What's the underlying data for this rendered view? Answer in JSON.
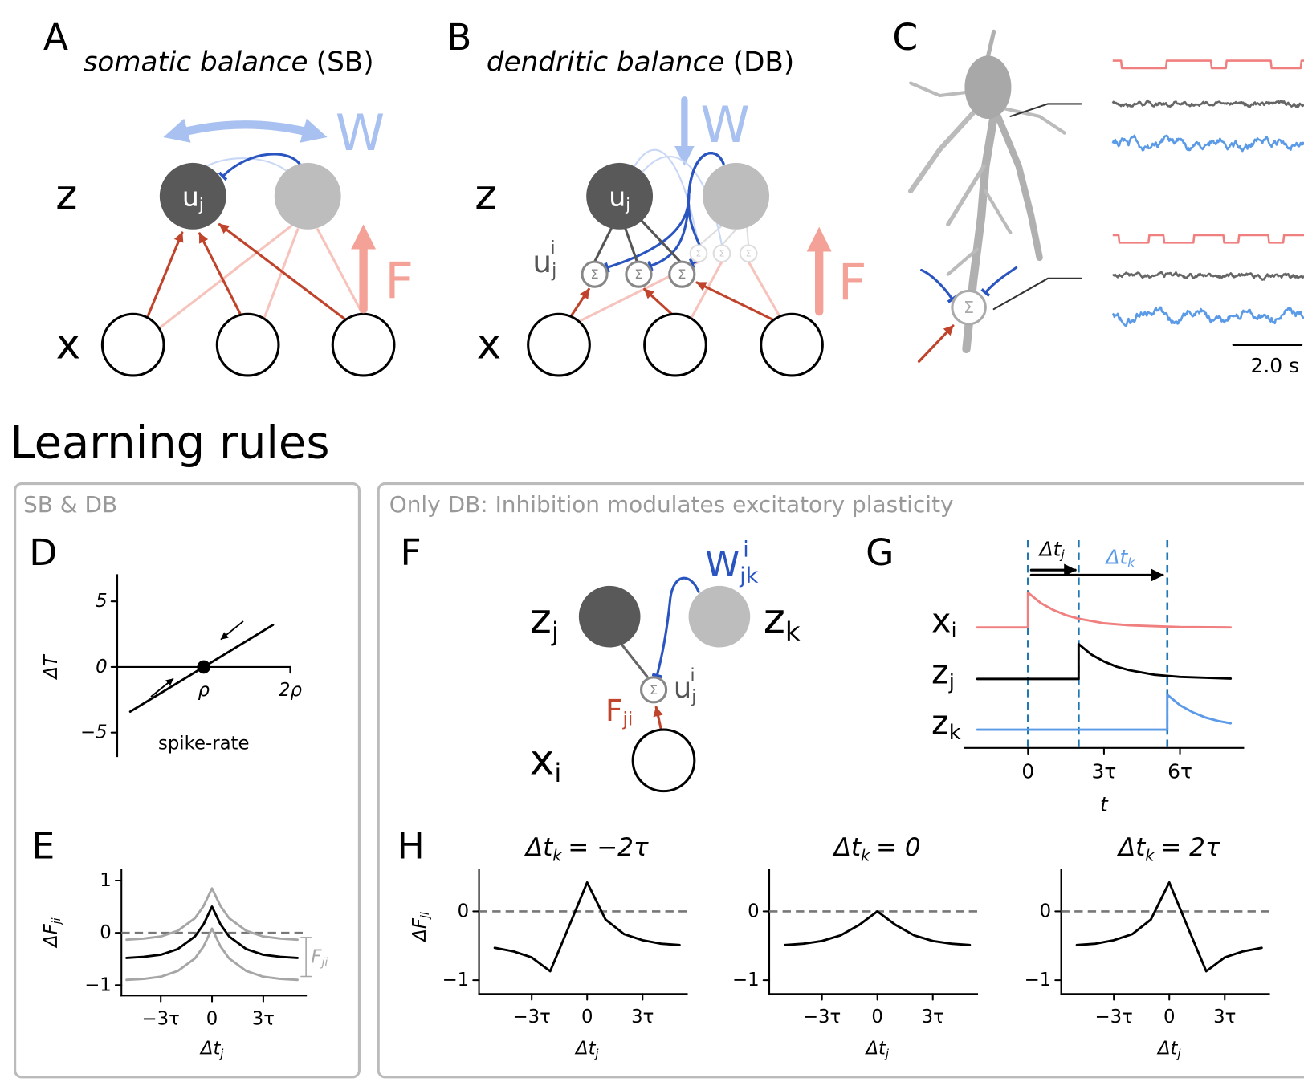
{
  "panel_a": {
    "letter": "A",
    "title": {
      "italic": "somatic balance",
      "plain": "(SB)"
    },
    "layer_z": "z",
    "layer_x": "x",
    "neuron": {
      "main": "u",
      "sub": "j"
    },
    "w_label": "W",
    "f_label": "F"
  },
  "panel_b": {
    "letter": "B",
    "title": {
      "italic": "dendritic balance",
      "plain": "(DB)"
    },
    "layer_z": "z",
    "layer_x": "x",
    "neuron": {
      "main": "u",
      "sub": "j"
    },
    "dendrite": {
      "main": "u",
      "sub": "j",
      "sup": "i"
    },
    "sum_symbol": "Σ",
    "w_label": "W",
    "f_label": "F"
  },
  "panel_c": {
    "letter": "C",
    "sum_symbol": "Σ",
    "scale_bar": "2.0 s"
  },
  "section_title": "Learning rules",
  "box_left": {
    "title": "SB & DB"
  },
  "box_right": {
    "title": "Only DB: Inhibition modulates excitatory plasticity"
  },
  "panel_d": {
    "letter": "D",
    "type": "line",
    "ylabel": "ΔT",
    "xlabel": "spike-rate",
    "xlim": [
      0,
      2
    ],
    "ylim": [
      -6.8,
      7
    ],
    "xticks": [
      {
        "value": 1,
        "label": "ρ"
      },
      {
        "value": 2,
        "label": "2ρ"
      }
    ],
    "yticks": [
      5,
      0,
      {
        "value": -5,
        "label": "−5"
      }
    ],
    "x": [
      0.15,
      1.8
    ],
    "values": [
      -3.4,
      3.2
    ],
    "color": "#000000",
    "point": {
      "x": 1,
      "value": 0
    }
  },
  "panel_e": {
    "letter": "E",
    "type": "line",
    "ylabel": {
      "main": "ΔF",
      "sub": "ji"
    },
    "xlabel": {
      "main": "Δt",
      "sub": "j"
    },
    "annotation": {
      "main": "F",
      "sub": "ji"
    },
    "xlim": [
      -5.3,
      5.5
    ],
    "ylim": [
      -1.2,
      1.2
    ],
    "xticks": [
      {
        "value": -3,
        "label": "−3τ"
      },
      0,
      {
        "value": 3,
        "label": "3τ"
      }
    ],
    "yticks": [
      1,
      0,
      {
        "value": -1,
        "label": "−1"
      }
    ],
    "hline": 0,
    "x": [
      -5,
      -4,
      -3,
      -2,
      -1,
      -0.5,
      0,
      0.5,
      1,
      2,
      3,
      4,
      5
    ],
    "series": [
      {
        "color": "#a6a6a6",
        "values": [
          -0.13,
          -0.11,
          -0.07,
          0.04,
          0.28,
          0.51,
          0.85,
          0.51,
          0.28,
          0.04,
          -0.07,
          -0.11,
          -0.13
        ]
      },
      {
        "color": "#000000",
        "values": [
          -0.48,
          -0.46,
          -0.42,
          -0.31,
          -0.07,
          0.16,
          0.5,
          0.16,
          -0.07,
          -0.31,
          -0.42,
          -0.46,
          -0.48
        ]
      },
      {
        "color": "#a6a6a6",
        "values": [
          -0.9,
          -0.88,
          -0.84,
          -0.73,
          -0.49,
          -0.26,
          0.08,
          -0.26,
          -0.49,
          -0.73,
          -0.84,
          -0.88,
          -0.9
        ]
      }
    ]
  },
  "panel_f": {
    "letter": "F",
    "z_j": {
      "main": "z",
      "sub": "j"
    },
    "z_k": {
      "main": "z",
      "sub": "k"
    },
    "x_i": {
      "main": "x",
      "sub": "i"
    },
    "dendrite": {
      "main": "u",
      "sub": "j",
      "sup": "i"
    },
    "f_label": {
      "main": "F",
      "sub": "ji"
    },
    "w_label": {
      "main": "W",
      "sub": "jk",
      "sup": "i"
    },
    "sum_symbol": "Σ"
  },
  "panel_g": {
    "letter": "G",
    "type": "line",
    "xlabel": "t",
    "xlim": [
      -2.5,
      8.5
    ],
    "xticks": [
      0,
      {
        "value": 3,
        "label": "3τ"
      },
      {
        "value": 6,
        "label": "6τ"
      }
    ],
    "events": [
      0,
      2,
      5.5
    ],
    "interval_j": {
      "main": "Δt",
      "sub": "j"
    },
    "interval_k": {
      "main": "Δt",
      "sub": "k"
    },
    "series": [
      {
        "name": {
          "main": "x",
          "sub": "i"
        },
        "color": "#f08080",
        "x": [
          -2,
          0,
          0,
          0.5,
          1,
          1.5,
          2,
          3,
          4,
          6,
          8
        ],
        "values": [
          0,
          0,
          1,
          0.7,
          0.5,
          0.35,
          0.25,
          0.12,
          0.06,
          0.01,
          0
        ]
      },
      {
        "name": {
          "main": "z",
          "sub": "j"
        },
        "color": "#000000",
        "x": [
          -2,
          2,
          2,
          2.5,
          3,
          3.5,
          4,
          5,
          6,
          8
        ],
        "values": [
          0,
          0,
          1,
          0.7,
          0.5,
          0.35,
          0.25,
          0.12,
          0.06,
          0.01
        ]
      },
      {
        "name": {
          "main": "z",
          "sub": "k"
        },
        "color": "#5b9ae6",
        "x": [
          -2,
          5.5,
          5.5,
          6,
          6.5,
          7,
          7.5,
          8
        ],
        "values": [
          0,
          0,
          1,
          0.7,
          0.5,
          0.35,
          0.25,
          0.18
        ]
      }
    ]
  },
  "panel_h": {
    "letter": "H",
    "ylabel": {
      "main": "ΔF",
      "sub": "ji"
    },
    "plots": [
      {
        "type": "line",
        "title": {
          "main": "Δt",
          "sub": "k",
          "rest": "= −2τ"
        },
        "xlabel": {
          "main": "Δt",
          "sub": "j"
        },
        "xlim": [
          -5.85,
          5.4
        ],
        "ylim": [
          -1.2,
          0.6
        ],
        "xticks": [
          {
            "value": -3,
            "label": "−3τ"
          },
          0,
          {
            "value": 3,
            "label": "3τ"
          }
        ],
        "yticks": [
          0,
          {
            "value": -1,
            "label": "−1"
          }
        ],
        "hline": 0,
        "x": [
          -5,
          -4,
          -3,
          -2,
          -1,
          0,
          1,
          2,
          3,
          4,
          5
        ],
        "values": [
          -0.53,
          -0.58,
          -0.67,
          -0.87,
          -0.23,
          0.42,
          -0.12,
          -0.33,
          -0.42,
          -0.47,
          -0.49
        ],
        "color": "#000000"
      },
      {
        "type": "line",
        "title": {
          "main": "Δt",
          "sub": "k",
          "rest": "= 0"
        },
        "xlabel": {
          "main": "Δt",
          "sub": "j"
        },
        "xlim": [
          -5.85,
          5.4
        ],
        "ylim": [
          -1.2,
          0.6
        ],
        "xticks": [
          {
            "value": -3,
            "label": "−3τ"
          },
          0,
          {
            "value": 3,
            "label": "3τ"
          }
        ],
        "yticks": [
          0,
          {
            "value": -1,
            "label": "−1"
          }
        ],
        "hline": 0,
        "x": [
          -5,
          -4,
          -3,
          -2,
          -1,
          0,
          1,
          2,
          3,
          4,
          5
        ],
        "values": [
          -0.49,
          -0.47,
          -0.43,
          -0.35,
          -0.2,
          0,
          -0.2,
          -0.35,
          -0.43,
          -0.47,
          -0.49
        ],
        "color": "#000000"
      },
      {
        "type": "line",
        "title": {
          "main": "Δt",
          "sub": "k",
          "rest": "= 2τ"
        },
        "xlabel": {
          "main": "Δt",
          "sub": "j"
        },
        "xlim": [
          -5.85,
          5.4
        ],
        "ylim": [
          -1.2,
          0.6
        ],
        "xticks": [
          {
            "value": -3,
            "label": "−3τ"
          },
          0,
          {
            "value": 3,
            "label": "3τ"
          }
        ],
        "yticks": [
          0,
          {
            "value": -1,
            "label": "−1"
          }
        ],
        "hline": 0,
        "x": [
          -5,
          -4,
          -3,
          -2,
          -1,
          0,
          1,
          2,
          3,
          4,
          5
        ],
        "values": [
          -0.49,
          -0.47,
          -0.42,
          -0.33,
          -0.12,
          0.42,
          -0.23,
          -0.87,
          -0.67,
          -0.58,
          -0.53
        ],
        "color": "#000000"
      }
    ]
  }
}
